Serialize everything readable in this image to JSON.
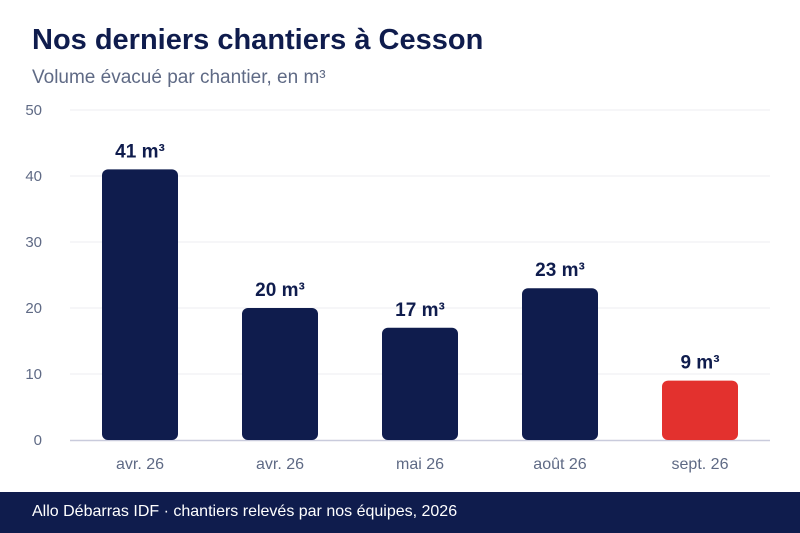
{
  "header": {
    "title": "Nos derniers chantiers à Cesson",
    "subtitle": "Volume évacué par chantier, en m³"
  },
  "footer": {
    "text": "Allo Débarras IDF · chantiers relevés par nos équipes, 2026"
  },
  "colors": {
    "bar": "#0f1c4d",
    "highlight_bar": "#e3312e",
    "grid": "#ececf1",
    "axis": "#c9cbdc",
    "tick_text": "#5f6a85",
    "label_text": "#0f1c4d"
  },
  "chart_data": {
    "type": "bar",
    "title": "Nos derniers chantiers à Cesson",
    "subtitle": "Volume évacué par chantier, en m³",
    "categories": [
      "avr. 26",
      "avr. 26",
      "mai 26",
      "août 26",
      "sept. 26"
    ],
    "values": [
      41,
      20,
      17,
      23,
      9
    ],
    "value_labels": [
      "41 m³",
      "20 m³",
      "17 m³",
      "23 m³",
      "9 m³"
    ],
    "highlight": [
      false,
      false,
      false,
      false,
      true
    ],
    "ylim": [
      0,
      50
    ],
    "yticks": [
      0,
      10,
      20,
      30,
      40,
      50
    ],
    "grid": true
  }
}
